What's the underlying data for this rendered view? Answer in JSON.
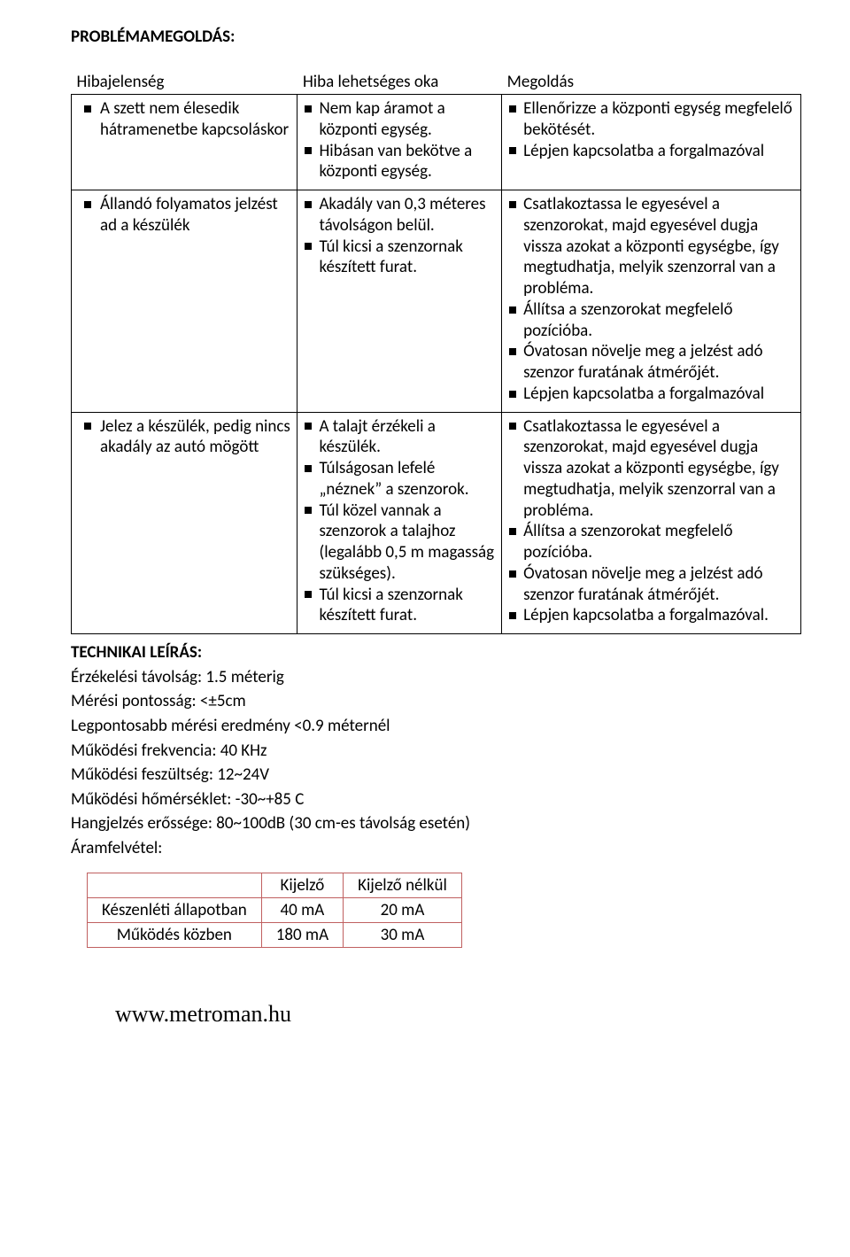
{
  "headings": {
    "problem_solving": "PROBLÉMAMEGOLDÁS:",
    "technical": "TECHNIKAI LEÍRÁS:"
  },
  "troubleshoot": {
    "columns": [
      "Hibajelenség",
      "Hiba lehetséges oka",
      "Megoldás"
    ],
    "rows": [
      {
        "symptom": "A szett nem élesedik hátramenetbe kapcsoláskor",
        "causes": [
          "Nem kap áramot a központi egység.",
          "Hibásan van bekötve a központi egység."
        ],
        "solutions": [
          "Ellenőrizze a központi egység megfelelő bekötését.",
          "Lépjen kapcsolatba a forgalmazóval"
        ]
      },
      {
        "symptom": "Állandó folyamatos jelzést ad a készülék",
        "causes": [
          "Akadály van 0,3 méteres távolságon belül.",
          "Túl kicsi a szenzornak készített furat."
        ],
        "solutions": [
          "Csatlakoztassa le egyesével a szenzorokat, majd egyesével dugja vissza azokat a központi egységbe, így megtudhatja, melyik szenzorral van a probléma.",
          "Állítsa a szenzorokat megfelelő pozícióba.",
          "Óvatosan növelje meg a jelzést adó szenzor furatának átmérőjét.",
          "Lépjen kapcsolatba a forgalmazóval"
        ]
      },
      {
        "symptom": "Jelez a készülék, pedig nincs akadály az autó mögött",
        "causes": [
          "A talajt érzékeli a készülék.",
          "Túlságosan lefelé „néznek” a szenzorok.",
          "Túl közel vannak a szenzorok a talajhoz (legalább 0,5 m magasság szükséges).",
          "Túl kicsi a szenzornak készített furat."
        ],
        "solutions": [
          "Csatlakoztassa le egyesével a szenzorokat, majd egyesével dugja vissza azokat a központi egységbe, így megtudhatja, melyik szenzorral van a probléma.",
          "Állítsa a szenzorokat megfelelő pozícióba.",
          "Óvatosan növelje meg a jelzést adó szenzor furatának átmérőjét.",
          "Lépjen kapcsolatba a forgalmazóval."
        ]
      }
    ]
  },
  "tech": {
    "lines": [
      "Érzékelési távolság: 1.5 méterig",
      "Mérési pontosság: <±5cm",
      "Legpontosabb mérési eredmény <0.9 méternél",
      "Működési frekvencia: 40 KHz",
      "Működési feszültség: 12~24V",
      "Működési hőmérséklet: -30~+85 C",
      "Hangjelzés erőssége: 80~100dB (30 cm-es távolság esetén)",
      "Áramfelvétel:"
    ]
  },
  "power_table": {
    "border_color": "#c06060",
    "columns": [
      "",
      "Kijelző",
      "Kijelző nélkül"
    ],
    "rows": [
      [
        "Készenléti állapotban",
        "40 mA",
        "20 mA"
      ],
      [
        "Működés közben",
        "180 mA",
        "30 mA"
      ]
    ]
  },
  "footer": "www.metroman.hu"
}
